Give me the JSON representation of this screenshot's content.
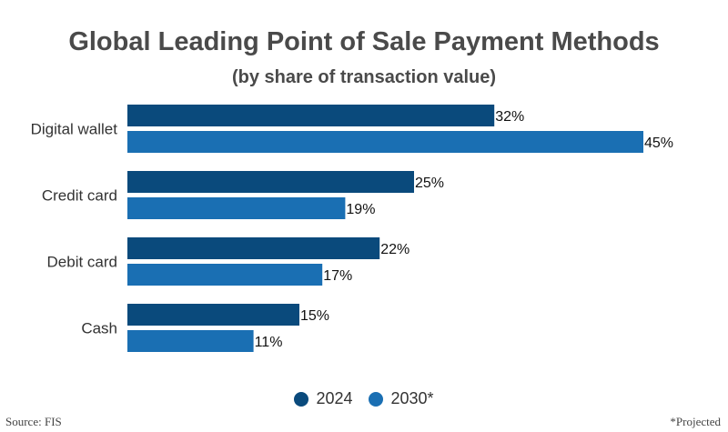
{
  "title": "Global Leading Point of Sale Payment Methods",
  "subtitle": "(by share of transaction value)",
  "source": "Source: FIS",
  "footnote": "*Projected",
  "colors": {
    "series_2024": "#0a4a7c",
    "series_2030": "#1a6fb3",
    "text": "#333333"
  },
  "chart_data": {
    "type": "bar",
    "orientation": "horizontal",
    "title": "Global Leading Point of Sale Payment Methods",
    "subtitle": "(by share of transaction value)",
    "categories": [
      "Digital wallet",
      "Credit card",
      "Debit card",
      "Cash"
    ],
    "series": [
      {
        "name": "2024",
        "values": [
          32,
          25,
          22,
          15
        ],
        "labels": [
          "32%",
          "25%",
          "22%",
          "15%"
        ]
      },
      {
        "name": "2030*",
        "values": [
          45,
          19,
          17,
          11
        ],
        "labels": [
          "45%",
          "19%",
          "17%",
          "11%"
        ]
      }
    ],
    "xlim": [
      0,
      45
    ],
    "unit": "%",
    "grid": false,
    "legend_position": "bottom"
  }
}
